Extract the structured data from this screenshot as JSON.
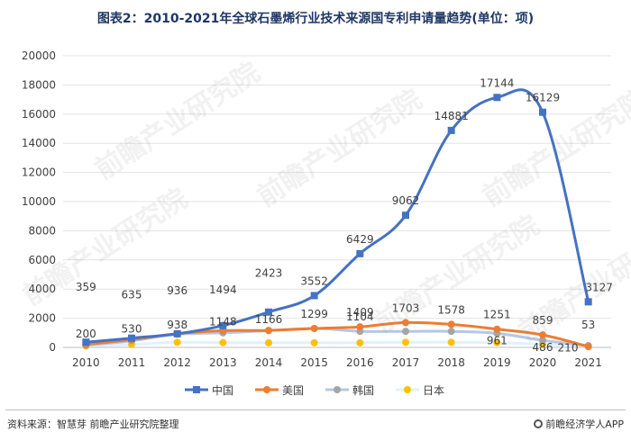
{
  "title": "图表2：2010-2021年全球石墨烯行业技术来源国专利申请量趋势(单位：项)",
  "source": "资料来源：智慧芽 前瞻产业研究院整理",
  "brand": "前瞻经济学人APP",
  "watermark": "前瞻产业研究院",
  "chart_data": {
    "type": "line",
    "categories": [
      "2010",
      "2011",
      "2012",
      "2013",
      "2014",
      "2015",
      "2016",
      "2017",
      "2018",
      "2019",
      "2020",
      "2021"
    ],
    "ylim": [
      0,
      20000
    ],
    "yticks": [
      "0",
      "2000",
      "4000",
      "6000",
      "8000",
      "10000",
      "12000",
      "14000",
      "16000",
      "18000",
      "20000"
    ],
    "grid": "horizontal",
    "legend_position": "bottom",
    "series": [
      {
        "name": "中国",
        "color": "#4472c4",
        "marker": "square",
        "smooth": true,
        "values": [
          359,
          635,
          936,
          1494,
          2423,
          3552,
          6429,
          9062,
          14881,
          17144,
          16129,
          3127
        ],
        "labels": [
          "359",
          "635",
          "936",
          "1494",
          "2423",
          "3552",
          "6429",
          "9062",
          "14881",
          "17144",
          "16129",
          "3127"
        ]
      },
      {
        "name": "美国",
        "color": "#ed7d31",
        "marker": "circle",
        "smooth": true,
        "values": [
          200,
          530,
          938,
          1148,
          1166,
          1299,
          1409,
          1703,
          1578,
          1251,
          859,
          53
        ],
        "labels": [
          "200",
          "530",
          "938",
          "1148",
          "1166",
          "1299",
          "1409",
          "1703",
          "1578",
          "1251",
          "859",
          "53"
        ]
      },
      {
        "name": "韩国",
        "color": "#a5a5a5",
        "marker": "circle",
        "smooth": true,
        "line_color": "#b4c7e7",
        "values": [
          150,
          450,
          900,
          1000,
          1150,
          1300,
          1104,
          1100,
          1100,
          961,
          486,
          120
        ],
        "labels": [
          "",
          "",
          "",
          "",
          "",
          "",
          "1104",
          "",
          "",
          "961",
          "486",
          ""
        ]
      },
      {
        "name": "日本",
        "color": "#ffc000",
        "marker": "circle",
        "smooth": true,
        "line_color": "#dff2ff",
        "values": [
          100,
          200,
          350,
          330,
          320,
          320,
          320,
          350,
          350,
          330,
          210,
          90
        ],
        "labels": [
          "",
          "",
          "",
          "",
          "",
          "",
          "",
          "",
          "",
          "",
          "210",
          ""
        ]
      }
    ]
  }
}
